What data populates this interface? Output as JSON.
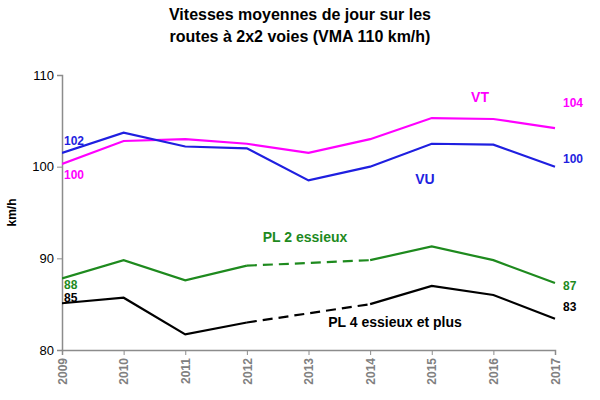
{
  "chart_data": {
    "type": "line",
    "title": "Vitesses moyennes de jour sur les\nroutes à 2x2 voies (VMA 110 km/h)",
    "y_label": "km/h",
    "categories": [
      "2009",
      "2010",
      "2011",
      "2012",
      "2013",
      "2014",
      "2015",
      "2016",
      "2017"
    ],
    "ylim": [
      80,
      110
    ],
    "yticks": [
      80,
      90,
      100,
      110
    ],
    "grid": false,
    "data_labels": true,
    "series": [
      {
        "name": "VT",
        "color": "#ff00ff",
        "values": [
          100.3,
          102.8,
          103.0,
          102.5,
          101.5,
          103.0,
          105.3,
          105.2,
          104.2
        ],
        "value_labels": [
          "100",
          null,
          null,
          null,
          null,
          null,
          null,
          null,
          "104"
        ]
      },
      {
        "name": "VU",
        "color": "#1f1fe0",
        "values": [
          101.5,
          103.7,
          102.2,
          102.0,
          98.5,
          100.0,
          102.5,
          102.4,
          100.0
        ],
        "value_labels": [
          "102",
          null,
          null,
          null,
          null,
          null,
          null,
          null,
          "100"
        ]
      },
      {
        "name": "PL 2 essieux",
        "color": "#1e8a1e",
        "values": [
          87.8,
          89.8,
          87.6,
          89.2,
          null,
          89.8,
          91.3,
          89.8,
          87.3
        ],
        "value_labels": [
          "88",
          null,
          null,
          null,
          null,
          null,
          null,
          null,
          "87"
        ]
      },
      {
        "name": "PL 4 essieux et plus",
        "color": "#000000",
        "values": [
          85.1,
          85.7,
          81.7,
          83.0,
          null,
          85.0,
          87.0,
          86.0,
          83.4
        ],
        "value_labels": [
          "85",
          null,
          null,
          null,
          null,
          null,
          null,
          null,
          "83"
        ]
      }
    ]
  }
}
